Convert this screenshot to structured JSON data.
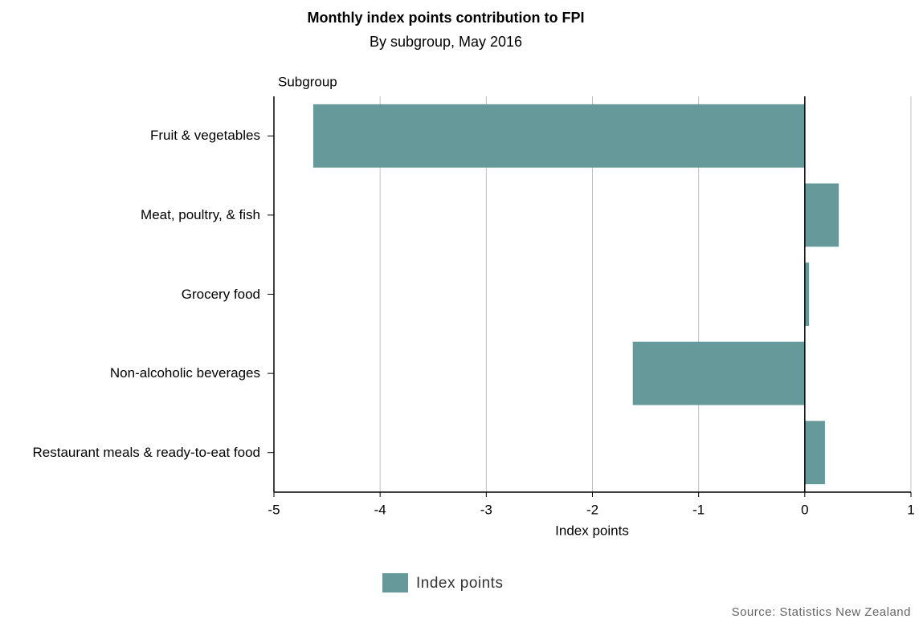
{
  "chart_data": {
    "type": "hbar",
    "title": "Monthly index points contribution to FPI",
    "subtitle": "By subgroup, May 2016",
    "y_axis_label": "Subgroup",
    "x_axis_label": "Index points",
    "categories": [
      "Fruit & vegetables",
      "Meat, poultry, & fish",
      "Grocery food",
      "Non-alcoholic beverages",
      "Restaurant meals & ready-to-eat food"
    ],
    "series": [
      {
        "name": "Index points",
        "color": "#669999",
        "values": [
          -4.63,
          0.32,
          0.04,
          -1.62,
          0.19
        ]
      }
    ],
    "xlim": [
      -5,
      1
    ],
    "xticks": [
      -5,
      -4,
      -3,
      -2,
      -1,
      0,
      1
    ],
    "grid": true,
    "legend": "bottom",
    "source": "Source: Statistics New Zealand"
  }
}
